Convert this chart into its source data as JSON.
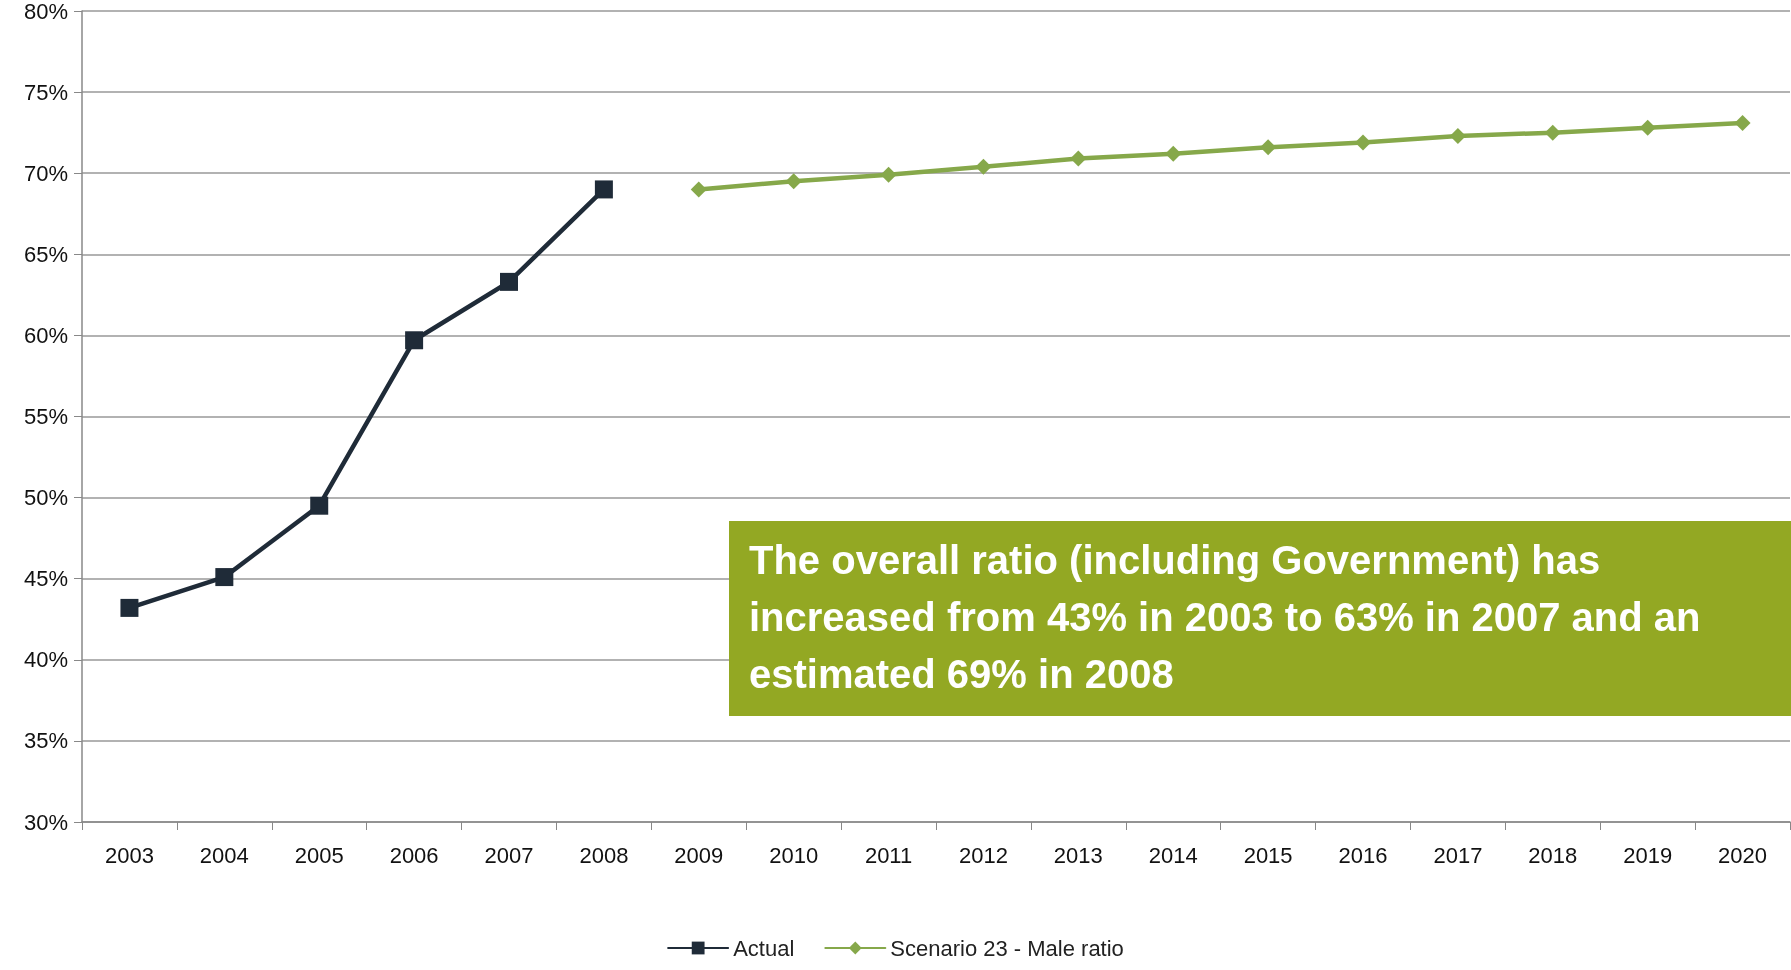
{
  "chart_data": {
    "type": "line",
    "categories": [
      "2003",
      "2004",
      "2005",
      "2006",
      "2007",
      "2008",
      "2009",
      "2010",
      "2011",
      "2012",
      "2013",
      "2014",
      "2015",
      "2016",
      "2017",
      "2018",
      "2019",
      "2020"
    ],
    "series": [
      {
        "name": "Actual",
        "color": "#1f2b38",
        "marker": "square",
        "values": [
          43.2,
          45.1,
          49.5,
          59.7,
          63.3,
          69.0,
          null,
          null,
          null,
          null,
          null,
          null,
          null,
          null,
          null,
          null,
          null,
          null
        ]
      },
      {
        "name": "Scenario 23 - Male ratio",
        "color": "#86a84a",
        "marker": "diamond",
        "values": [
          null,
          null,
          null,
          null,
          null,
          null,
          69.0,
          69.5,
          69.9,
          70.4,
          70.9,
          71.2,
          71.6,
          71.9,
          72.3,
          72.5,
          72.8,
          73.1
        ]
      }
    ],
    "ylim": [
      30,
      80
    ],
    "yticks": [
      {
        "value": 30,
        "label": "30%"
      },
      {
        "value": 35,
        "label": "35%"
      },
      {
        "value": 40,
        "label": "40%"
      },
      {
        "value": 45,
        "label": "45%"
      },
      {
        "value": 50,
        "label": "50%"
      },
      {
        "value": 55,
        "label": "55%"
      },
      {
        "value": 60,
        "label": "60%"
      },
      {
        "value": 65,
        "label": "65%"
      },
      {
        "value": 70,
        "label": "70%"
      },
      {
        "value": 75,
        "label": "75%"
      },
      {
        "value": 80,
        "label": "80%"
      }
    ],
    "grid": "y",
    "legend": "bottom",
    "line_style": "solid",
    "annotations": [
      "The overall ratio (including Government) has increased from 43% in 2003 to 63% in 2007 and an estimated 69% in 2008"
    ]
  }
}
